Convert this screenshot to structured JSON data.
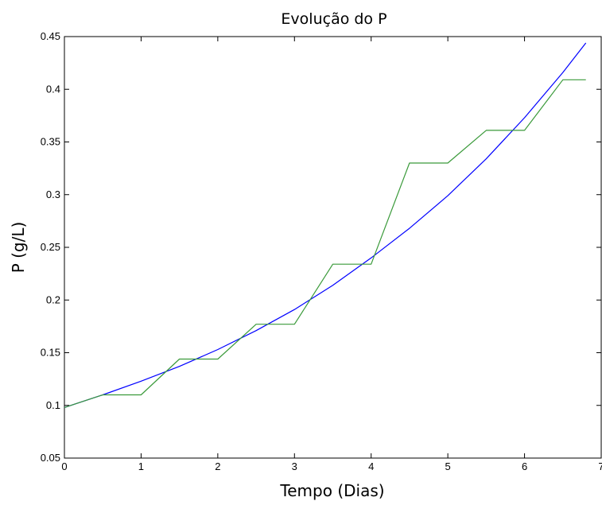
{
  "chart_data": {
    "type": "line",
    "title": "Evolução do P",
    "xlabel": "Tempo (Dias)",
    "ylabel": "P (g/L)",
    "xlim": [
      0,
      7
    ],
    "ylim": [
      0.05,
      0.45
    ],
    "grid": false,
    "x_ticks": [
      0,
      1,
      2,
      3,
      4,
      5,
      6,
      7
    ],
    "x_tick_labels": [
      "0",
      "1",
      "2",
      "3",
      "4",
      "5",
      "6",
      "7"
    ],
    "y_ticks": [
      0.05,
      0.1,
      0.15,
      0.2,
      0.25,
      0.3,
      0.35,
      0.4,
      0.45
    ],
    "y_tick_labels": [
      "0.05",
      "0.1",
      "0.15",
      "0.2",
      "0.25",
      "0.3",
      "0.35",
      "0.4",
      "0.45"
    ],
    "series": [
      {
        "color": "#0000ff",
        "x": [
          0,
          0.5,
          1,
          1.5,
          2,
          2.5,
          3,
          3.5,
          4,
          4.5,
          5,
          5.5,
          6,
          6.5,
          6.8
        ],
        "y": [
          0.098,
          0.11,
          0.123,
          0.137,
          0.153,
          0.171,
          0.191,
          0.214,
          0.24,
          0.268,
          0.299,
          0.334,
          0.373,
          0.416,
          0.444
        ]
      },
      {
        "color": "#3a9a3a",
        "x": [
          0,
          0.5,
          1,
          1.5,
          2,
          2.5,
          3,
          3.5,
          4,
          4.5,
          5,
          5.5,
          6,
          6.5,
          6.8
        ],
        "y": [
          0.098,
          0.11,
          0.11,
          0.144,
          0.144,
          0.177,
          0.177,
          0.234,
          0.234,
          0.33,
          0.33,
          0.361,
          0.361,
          0.409,
          0.409
        ]
      }
    ]
  }
}
